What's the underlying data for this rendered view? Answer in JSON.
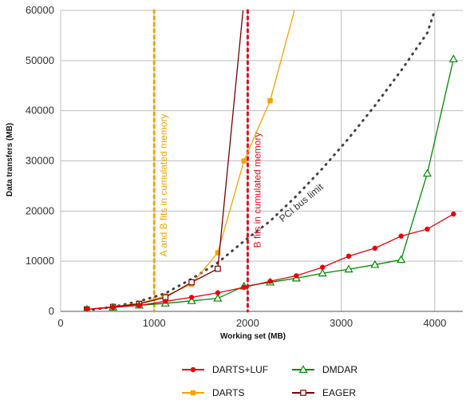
{
  "chart_data": {
    "type": "line",
    "xlabel": "Working set (MB)",
    "ylabel": "Data transfers (MB)",
    "xlim": [
      0,
      4300
    ],
    "ylim": [
      0,
      60000
    ],
    "xticks": [
      0,
      1000,
      2000,
      3000,
      4000
    ],
    "yticks": [
      0,
      10000,
      20000,
      30000,
      40000,
      50000,
      60000
    ],
    "xtick_labels": [
      "0",
      "1000",
      "2000",
      "3000",
      "4000"
    ],
    "ytick_labels": [
      "0",
      "10000",
      "20000",
      "30000",
      "40000",
      "50000",
      "60000"
    ],
    "grid": true,
    "legend_position": "bottom",
    "series": [
      {
        "name": "DARTS+LUF",
        "color": "#e8000b",
        "marker": "circle",
        "x": [
          280,
          560,
          840,
          1120,
          1400,
          1680,
          1960,
          2240,
          2520,
          2800,
          3080,
          3360,
          3640,
          3920,
          4200
        ],
        "y": [
          400,
          800,
          1200,
          2000,
          2800,
          3700,
          4800,
          6000,
          7100,
          8800,
          11000,
          12600,
          15000,
          16400,
          19400
        ]
      },
      {
        "name": "DMDAR",
        "color": "#008a00",
        "marker": "triangle",
        "x": [
          280,
          560,
          840,
          1120,
          1400,
          1680,
          1960,
          2240,
          2520,
          2800,
          3080,
          3360,
          3640,
          3920,
          4200
        ],
        "y": [
          400,
          800,
          1200,
          1600,
          2100,
          2600,
          5000,
          5800,
          6600,
          7600,
          8400,
          9300,
          10300,
          27500,
          50300
        ]
      },
      {
        "name": "DARTS",
        "color": "#f5a300",
        "marker": "square",
        "x": [
          280,
          560,
          840,
          1120,
          1400,
          1680,
          1960,
          2240,
          2500
        ],
        "y": [
          400,
          900,
          1600,
          3100,
          5400,
          11700,
          30000,
          42000,
          60000
        ]
      },
      {
        "name": "EAGER",
        "color": "#7a0000",
        "marker": "square-open",
        "x": [
          280,
          560,
          840,
          1120,
          1400,
          1680,
          1950
        ],
        "y": [
          400,
          900,
          1500,
          2800,
          5800,
          8500,
          60000
        ]
      }
    ],
    "reference_lines": [
      {
        "name": "PCI bus limit",
        "label": "PCI bus limit",
        "color": "#444444",
        "style": "dotted",
        "x": [
          280,
          560,
          840,
          1120,
          1400,
          1680,
          1960,
          2240,
          2520,
          2800,
          3080,
          3360,
          3640,
          3920,
          4000
        ],
        "y": [
          200,
          900,
          2000,
          3600,
          6500,
          9700,
          14000,
          18000,
          23000,
          28500,
          34500,
          41000,
          48000,
          55500,
          60000
        ]
      }
    ],
    "vertical_lines": [
      {
        "x": 1000,
        "label": "A and B fits in cumulated memory",
        "color": "#f5a300"
      },
      {
        "x": 2000,
        "label": "B fits in cumulated memory",
        "color": "#e0101f"
      }
    ]
  }
}
